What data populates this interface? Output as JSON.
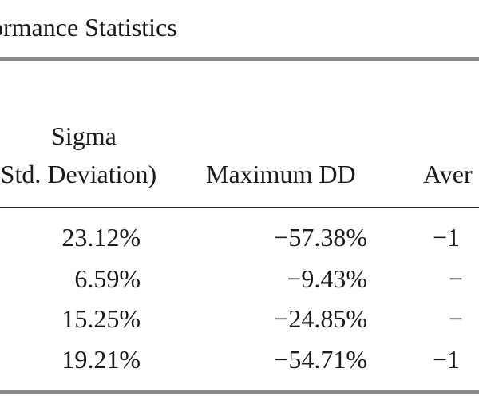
{
  "table": {
    "title": "ormance Statistics",
    "headers": {
      "sigma_line1": "Sigma",
      "sigma_line2": "(Std. Deviation)",
      "max_dd": "Maximum DD",
      "average": "Aver"
    },
    "rows": [
      {
        "sigma": "23.12%",
        "max_dd": "−57.38%",
        "average": "−1"
      },
      {
        "sigma": "6.59%",
        "max_dd": "−9.43%",
        "average": "−"
      },
      {
        "sigma": "15.25%",
        "max_dd": "−24.85%",
        "average": "−"
      },
      {
        "sigma": "19.21%",
        "max_dd": "−54.71%",
        "average": "−1"
      }
    ]
  }
}
